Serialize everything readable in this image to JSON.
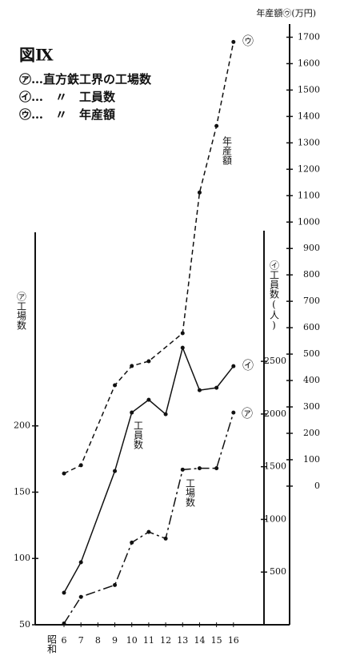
{
  "chart_data": {
    "type": "line",
    "title": "図Ⅸ",
    "x_label": "昭和",
    "xlim": [
      4.3,
      17
    ],
    "xticks": [
      6,
      7,
      8,
      9,
      10,
      11,
      12,
      13,
      14,
      15,
      16
    ],
    "y_label": "㋐工場数",
    "ylim": [
      50,
      346
    ],
    "yticks": [
      50,
      100,
      150,
      200
    ],
    "y2_label": "㋑工員数(人)",
    "y2lim": [
      0,
      3740
    ],
    "y2ticks": [
      500,
      1000,
      1500,
      2000,
      2500
    ],
    "y3_label": "年産額㋒(万円)",
    "y3lim": [
      -525,
      1750
    ],
    "y3ticks": [
      0,
      100,
      200,
      300,
      400,
      500,
      600,
      700,
      800,
      900,
      1000,
      1100,
      1200,
      1300,
      1400,
      1500,
      1600,
      1700
    ],
    "series": [
      {
        "name": "㋐…直方鉄工界の工場数",
        "end_label": "㋐",
        "annotation": "工場数",
        "axis": "y",
        "linestyle": "dashdot",
        "color": "#111111",
        "x": [
          6,
          7,
          9,
          10,
          11,
          12,
          13,
          14,
          15,
          16
        ],
        "values": [
          51,
          71,
          80,
          112,
          120,
          115,
          167,
          168,
          168,
          210
        ]
      },
      {
        "name": "㋑…　〃　工員数",
        "end_label": "㋑",
        "annotation": "工員数",
        "axis": "y2",
        "linestyle": "solid",
        "color": "#111111",
        "x": [
          6,
          7,
          9,
          10,
          11,
          12,
          13,
          14,
          15,
          16
        ],
        "values": [
          304,
          593,
          1459,
          2014,
          2135,
          1998,
          2629,
          2226,
          2249,
          2454
        ]
      },
      {
        "name": "㋒…　〃　年産額",
        "end_label": "㋒",
        "annotation": "年産額",
        "axis": "y3",
        "linestyle": "dashed",
        "color": "#111111",
        "x": [
          6,
          7,
          9,
          10,
          11,
          13,
          14,
          15,
          16
        ],
        "values": [
          48,
          79,
          382,
          455,
          473,
          579,
          1112,
          1364,
          1682
        ]
      }
    ]
  }
}
